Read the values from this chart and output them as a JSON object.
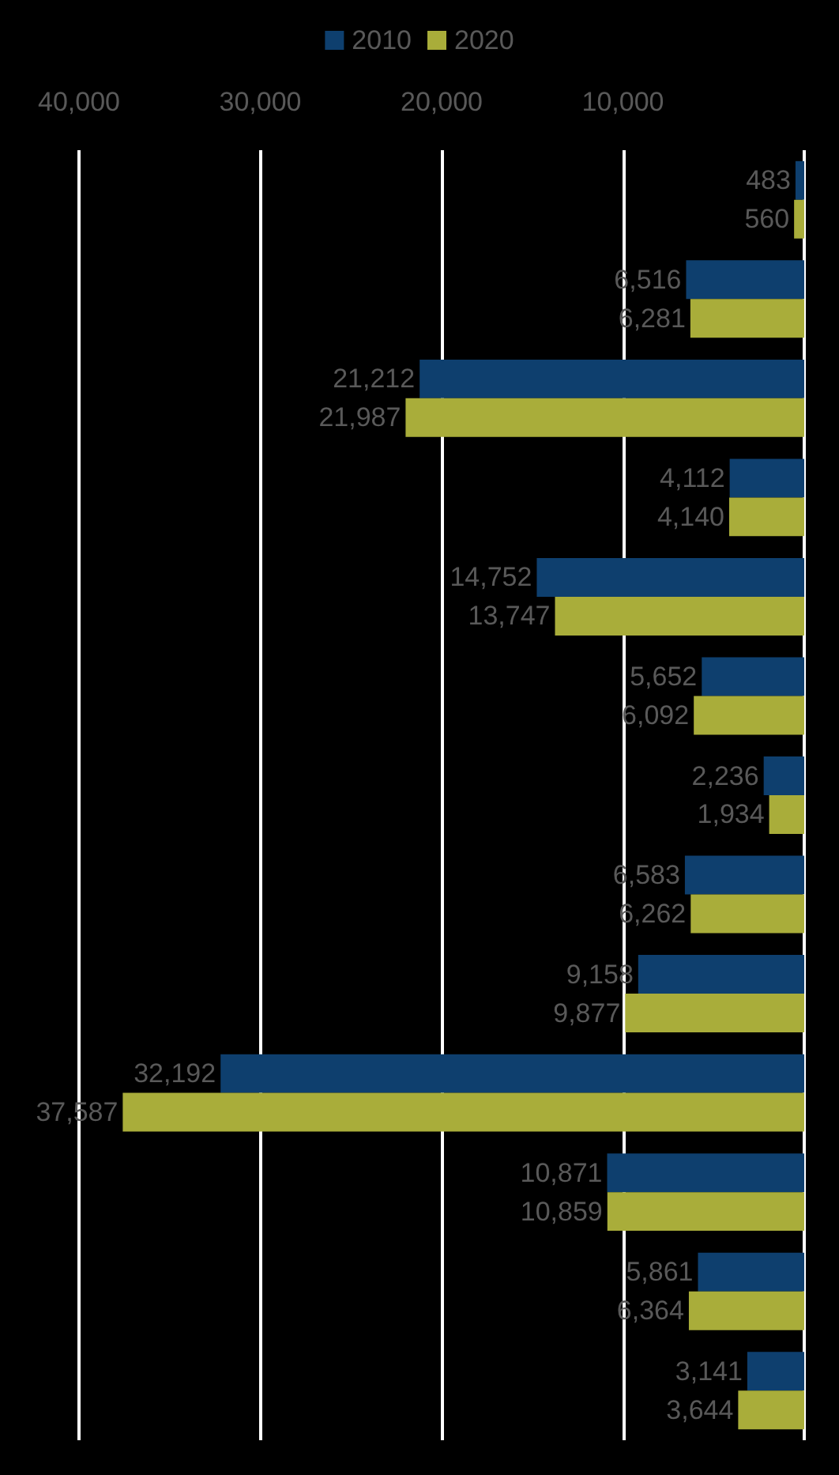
{
  "chart_data": {
    "type": "bar",
    "orientation": "horizontal",
    "categories": [
      null,
      null,
      null,
      null,
      null,
      null,
      null,
      null,
      null,
      null,
      null,
      null,
      null
    ],
    "series": [
      {
        "name": "2010",
        "color": "#0e3f6e",
        "values": [
          483,
          6516,
          21212,
          4112,
          14752,
          5652,
          2236,
          6583,
          9158,
          32192,
          10871,
          5861,
          3141
        ],
        "value_labels": [
          "483",
          "6,516",
          "21,212",
          "4,112",
          "14,752",
          "5,652",
          "2,236",
          "6,583",
          "9,158",
          "32,192",
          "10,871",
          "5,861",
          "3,141"
        ]
      },
      {
        "name": "2020",
        "color": "#a9ad3a",
        "values": [
          560,
          6281,
          21987,
          4140,
          13747,
          6092,
          1934,
          6262,
          9877,
          37587,
          10859,
          6364,
          3644
        ],
        "value_labels": [
          "560",
          "6,281",
          "21,987",
          "4,140",
          "13,747",
          "6,092",
          "1,934",
          "6,262",
          "9,877",
          "37,587",
          "10,859",
          "6,364",
          "3,644"
        ]
      }
    ],
    "xlim": [
      40000,
      0
    ],
    "xticks": [
      {
        "value": 40000,
        "label": "40,000"
      },
      {
        "value": 30000,
        "label": "30,000"
      },
      {
        "value": 20000,
        "label": "20,000"
      },
      {
        "value": 10000,
        "label": "10,000"
      },
      {
        "value": 0,
        "label": null
      }
    ],
    "grid": "x",
    "legend": "top"
  }
}
